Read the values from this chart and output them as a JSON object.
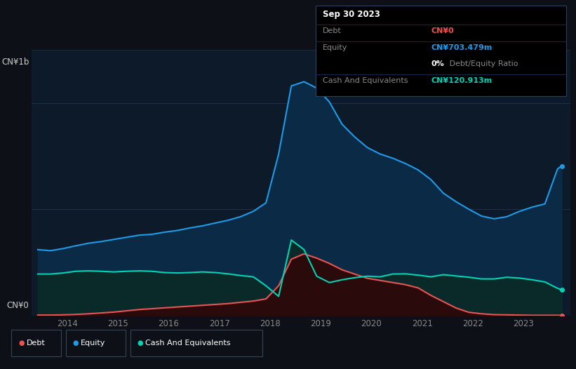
{
  "bg_color": "#0d1117",
  "plot_bg_color": "#0d1a2a",
  "title_box": {
    "date": "Sep 30 2023",
    "debt_label": "Debt",
    "debt_value": "CN¥0",
    "equity_label": "Equity",
    "equity_value": "CN¥703.479m",
    "ratio_label": "0%",
    "ratio_rest": " Debt/Equity Ratio",
    "cash_label": "Cash And Equivalents",
    "cash_value": "CN¥120.913m"
  },
  "ylabel_top": "CN¥1b",
  "ylabel_bottom": "CN¥0",
  "xlim": [
    2013.3,
    2023.92
  ],
  "ylim": [
    0,
    1250
  ],
  "equity_color": "#1e9be8",
  "debt_color": "#e85454",
  "cash_color": "#00d4b4",
  "equity_fill": "#0a2a45",
  "cash_fill": "#0a2a2a",
  "years": [
    2013.42,
    2013.67,
    2013.92,
    2014.17,
    2014.42,
    2014.67,
    2014.92,
    2015.17,
    2015.42,
    2015.67,
    2015.92,
    2016.17,
    2016.42,
    2016.67,
    2016.92,
    2017.17,
    2017.42,
    2017.67,
    2017.92,
    2018.17,
    2018.42,
    2018.67,
    2018.92,
    2019.17,
    2019.42,
    2019.67,
    2019.92,
    2020.17,
    2020.42,
    2020.67,
    2020.92,
    2021.17,
    2021.42,
    2021.67,
    2021.92,
    2022.17,
    2022.42,
    2022.67,
    2022.92,
    2023.17,
    2023.42,
    2023.67,
    2023.75
  ],
  "equity": [
    310,
    305,
    315,
    328,
    340,
    348,
    358,
    368,
    378,
    382,
    392,
    400,
    412,
    422,
    435,
    448,
    465,
    490,
    530,
    760,
    1080,
    1100,
    1070,
    1005,
    900,
    840,
    790,
    760,
    740,
    715,
    685,
    640,
    575,
    535,
    500,
    468,
    455,
    465,
    490,
    510,
    525,
    690,
    703
  ],
  "debt": [
    2,
    2,
    3,
    5,
    8,
    12,
    16,
    22,
    28,
    32,
    36,
    40,
    44,
    48,
    52,
    56,
    62,
    68,
    78,
    140,
    265,
    290,
    270,
    245,
    215,
    195,
    175,
    165,
    155,
    145,
    130,
    95,
    65,
    35,
    15,
    8,
    4,
    3,
    2,
    1,
    1,
    1,
    0
  ],
  "cash": [
    195,
    195,
    200,
    208,
    210,
    208,
    205,
    208,
    210,
    208,
    202,
    200,
    202,
    205,
    202,
    196,
    188,
    182,
    140,
    90,
    355,
    310,
    185,
    155,
    168,
    178,
    185,
    182,
    195,
    196,
    190,
    182,
    192,
    186,
    180,
    172,
    172,
    180,
    176,
    168,
    158,
    128,
    121
  ]
}
